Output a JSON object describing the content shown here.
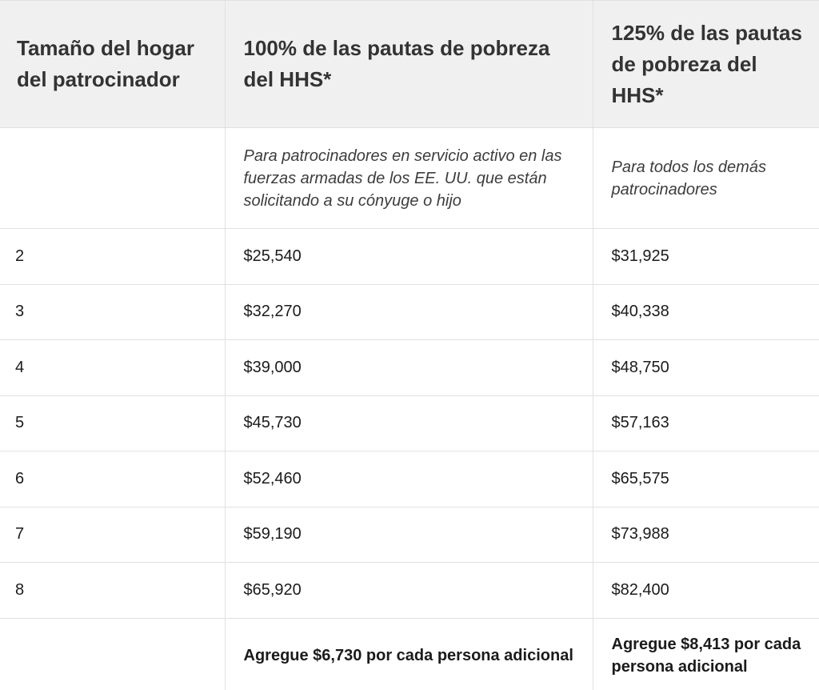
{
  "table": {
    "headers": [
      "Tamaño del hogar del patrocinador",
      "100% de las pautas de pobreza del HHS*",
      "125% de las pautas de pobreza del HHS*"
    ],
    "notes": [
      "",
      "Para patrocinadores en servicio activo en las fuerzas armadas de los EE. UU. que están solicitando a su cónyuge o hijo",
      "Para todos los demás patrocinadores"
    ],
    "rows": [
      [
        "2",
        "$25,540",
        "$31,925"
      ],
      [
        "3",
        "$32,270",
        "$40,338"
      ],
      [
        "4",
        "$39,000",
        "$48,750"
      ],
      [
        "5",
        "$45,730",
        "$57,163"
      ],
      [
        "6",
        "$52,460",
        "$65,575"
      ],
      [
        "7",
        "$59,190",
        "$73,988"
      ],
      [
        "8",
        "$65,920",
        "$82,400"
      ]
    ],
    "footer": [
      "",
      "Agregue $6,730 por cada persona adicional",
      "Agregue $8,413 por cada persona adicional"
    ]
  }
}
